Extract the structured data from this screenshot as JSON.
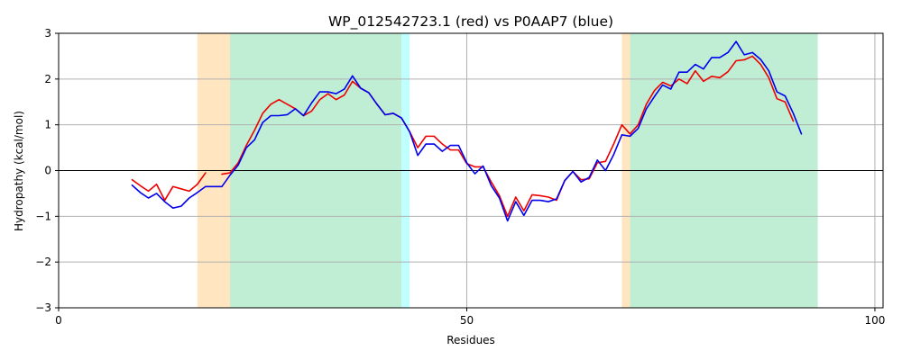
{
  "chart_data": {
    "type": "line",
    "title": "WP_012542723.1 (red) vs P0AAP7 (blue)",
    "xlabel": "Residues",
    "ylabel": "Hydropathy (kcal/mol)",
    "xlim": [
      0,
      101
    ],
    "ylim": [
      -3,
      3
    ],
    "xticks": [
      0,
      50,
      100
    ],
    "yticks": [
      -3,
      -2,
      -1,
      0,
      1,
      2,
      3
    ],
    "grid": true,
    "zero_line": true,
    "regions": [
      {
        "start": 17,
        "end": 21,
        "color": "#ffe6c0"
      },
      {
        "start": 21,
        "end": 42,
        "color": "#c0eed4"
      },
      {
        "start": 42,
        "end": 43,
        "color": "#c0ffff"
      },
      {
        "start": 69,
        "end": 70,
        "color": "#ffe6c0"
      },
      {
        "start": 70,
        "end": 93,
        "color": "#c0eed4"
      }
    ],
    "series": [
      {
        "name": "WP_012542723.1",
        "color": "#ee0000",
        "segments": [
          [
            [
              9,
              -0.2
            ],
            [
              10,
              -0.33
            ],
            [
              11,
              -0.45
            ],
            [
              12,
              -0.3
            ],
            [
              13,
              -0.65
            ],
            [
              14,
              -0.35
            ],
            [
              15,
              -0.4
            ],
            [
              16,
              -0.45
            ],
            [
              17,
              -0.3
            ],
            [
              18,
              -0.05
            ]
          ],
          [
            [
              20,
              -0.08
            ],
            [
              21,
              -0.05
            ],
            [
              22,
              0.17
            ],
            [
              23,
              0.55
            ],
            [
              24,
              0.88
            ],
            [
              25,
              1.25
            ],
            [
              26,
              1.45
            ],
            [
              27,
              1.55
            ],
            [
              28,
              1.45
            ],
            [
              29,
              1.35
            ],
            [
              30,
              1.2
            ],
            [
              31,
              1.3
            ],
            [
              32,
              1.55
            ],
            [
              33,
              1.68
            ],
            [
              34,
              1.55
            ],
            [
              35,
              1.65
            ],
            [
              36,
              1.95
            ],
            [
              37,
              1.8
            ],
            [
              38,
              1.7
            ],
            [
              39,
              1.45
            ],
            [
              40,
              1.22
            ],
            [
              41,
              1.25
            ],
            [
              42,
              1.15
            ],
            [
              43,
              0.85
            ],
            [
              44,
              0.5
            ],
            [
              45,
              0.75
            ],
            [
              46,
              0.75
            ],
            [
              47,
              0.58
            ],
            [
              48,
              0.45
            ],
            [
              49,
              0.45
            ],
            [
              50,
              0.15
            ],
            [
              51,
              0.08
            ],
            [
              52,
              0.08
            ],
            [
              53,
              -0.25
            ],
            [
              54,
              -0.55
            ],
            [
              55,
              -1.0
            ],
            [
              56,
              -0.58
            ],
            [
              57,
              -0.88
            ],
            [
              58,
              -0.53
            ],
            [
              59,
              -0.55
            ],
            [
              60,
              -0.58
            ],
            [
              61,
              -0.65
            ],
            [
              62,
              -0.22
            ],
            [
              63,
              -0.02
            ],
            [
              64,
              -0.2
            ],
            [
              65,
              -0.18
            ],
            [
              66,
              0.17
            ],
            [
              67,
              0.2
            ],
            [
              68,
              0.58
            ],
            [
              69,
              1.0
            ],
            [
              70,
              0.8
            ],
            [
              71,
              1.0
            ],
            [
              72,
              1.45
            ],
            [
              73,
              1.75
            ],
            [
              74,
              1.93
            ],
            [
              75,
              1.85
            ],
            [
              76,
              2.0
            ],
            [
              77,
              1.9
            ],
            [
              78,
              2.18
            ],
            [
              79,
              1.95
            ],
            [
              80,
              2.06
            ],
            [
              81,
              2.03
            ],
            [
              82,
              2.16
            ],
            [
              83,
              2.4
            ],
            [
              84,
              2.42
            ],
            [
              85,
              2.5
            ],
            [
              86,
              2.32
            ],
            [
              87,
              2.03
            ],
            [
              88,
              1.57
            ],
            [
              89,
              1.5
            ],
            [
              90,
              1.08
            ]
          ]
        ]
      },
      {
        "name": "P0AAP7",
        "color": "#0000ee",
        "segments": [
          [
            [
              9,
              -0.32
            ],
            [
              10,
              -0.48
            ],
            [
              11,
              -0.6
            ],
            [
              12,
              -0.5
            ],
            [
              13,
              -0.68
            ],
            [
              14,
              -0.82
            ],
            [
              15,
              -0.78
            ],
            [
              16,
              -0.6
            ],
            [
              17,
              -0.48
            ],
            [
              18,
              -0.35
            ],
            [
              19,
              -0.35
            ],
            [
              20,
              -0.35
            ],
            [
              21,
              -0.1
            ],
            [
              22,
              0.12
            ],
            [
              23,
              0.5
            ],
            [
              24,
              0.67
            ],
            [
              25,
              1.05
            ],
            [
              26,
              1.2
            ],
            [
              27,
              1.2
            ],
            [
              28,
              1.22
            ],
            [
              29,
              1.35
            ],
            [
              30,
              1.2
            ],
            [
              31,
              1.48
            ],
            [
              32,
              1.72
            ],
            [
              33,
              1.72
            ],
            [
              34,
              1.68
            ],
            [
              35,
              1.78
            ],
            [
              36,
              2.07
            ],
            [
              37,
              1.8
            ],
            [
              38,
              1.7
            ],
            [
              39,
              1.45
            ],
            [
              40,
              1.22
            ],
            [
              41,
              1.25
            ],
            [
              42,
              1.15
            ],
            [
              43,
              0.85
            ],
            [
              44,
              0.33
            ],
            [
              45,
              0.58
            ],
            [
              46,
              0.58
            ],
            [
              47,
              0.42
            ],
            [
              48,
              0.55
            ],
            [
              49,
              0.55
            ],
            [
              50,
              0.17
            ],
            [
              51,
              -0.07
            ],
            [
              52,
              0.1
            ],
            [
              53,
              -0.33
            ],
            [
              54,
              -0.6
            ],
            [
              55,
              -1.1
            ],
            [
              56,
              -0.68
            ],
            [
              57,
              -0.98
            ],
            [
              58,
              -0.65
            ],
            [
              59,
              -0.65
            ],
            [
              60,
              -0.68
            ],
            [
              61,
              -0.62
            ],
            [
              62,
              -0.22
            ],
            [
              63,
              -0.02
            ],
            [
              64,
              -0.25
            ],
            [
              65,
              -0.15
            ],
            [
              66,
              0.23
            ],
            [
              67,
              0.0
            ],
            [
              68,
              0.35
            ],
            [
              69,
              0.78
            ],
            [
              70,
              0.75
            ],
            [
              71,
              0.92
            ],
            [
              72,
              1.35
            ],
            [
              73,
              1.62
            ],
            [
              74,
              1.87
            ],
            [
              75,
              1.78
            ],
            [
              76,
              2.15
            ],
            [
              77,
              2.15
            ],
            [
              78,
              2.32
            ],
            [
              79,
              2.22
            ],
            [
              80,
              2.47
            ],
            [
              81,
              2.47
            ],
            [
              82,
              2.58
            ],
            [
              83,
              2.82
            ],
            [
              84,
              2.53
            ],
            [
              85,
              2.58
            ],
            [
              86,
              2.43
            ],
            [
              87,
              2.18
            ],
            [
              88,
              1.72
            ],
            [
              89,
              1.63
            ],
            [
              90,
              1.25
            ],
            [
              91,
              0.8
            ]
          ]
        ]
      }
    ]
  }
}
